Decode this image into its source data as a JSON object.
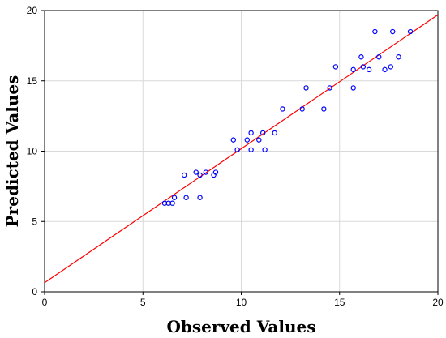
{
  "chart_data": {
    "type": "scatter",
    "title": "",
    "xlabel": "Observed Values",
    "ylabel": "Predicted Values",
    "xlim": [
      0,
      20
    ],
    "ylim": [
      0,
      20
    ],
    "xticks": [
      0,
      5,
      10,
      15,
      20
    ],
    "yticks": [
      0,
      5,
      10,
      15,
      20
    ],
    "grid": true,
    "legend": "none",
    "points": [
      {
        "x": 6.1,
        "y": 6.3
      },
      {
        "x": 6.3,
        "y": 6.3
      },
      {
        "x": 6.5,
        "y": 6.3
      },
      {
        "x": 6.6,
        "y": 6.7
      },
      {
        "x": 7.2,
        "y": 6.7
      },
      {
        "x": 7.1,
        "y": 8.3
      },
      {
        "x": 7.7,
        "y": 8.5
      },
      {
        "x": 7.9,
        "y": 8.3
      },
      {
        "x": 7.9,
        "y": 6.7
      },
      {
        "x": 8.2,
        "y": 8.5
      },
      {
        "x": 8.6,
        "y": 8.3
      },
      {
        "x": 8.7,
        "y": 8.5
      },
      {
        "x": 9.6,
        "y": 10.8
      },
      {
        "x": 9.8,
        "y": 10.1
      },
      {
        "x": 10.3,
        "y": 10.8
      },
      {
        "x": 10.5,
        "y": 11.3
      },
      {
        "x": 10.5,
        "y": 10.1
      },
      {
        "x": 10.9,
        "y": 10.8
      },
      {
        "x": 11.1,
        "y": 11.3
      },
      {
        "x": 11.2,
        "y": 10.1
      },
      {
        "x": 11.7,
        "y": 11.3
      },
      {
        "x": 12.1,
        "y": 13.0
      },
      {
        "x": 13.1,
        "y": 13.0
      },
      {
        "x": 13.3,
        "y": 14.5
      },
      {
        "x": 14.2,
        "y": 13.0
      },
      {
        "x": 14.5,
        "y": 14.5
      },
      {
        "x": 14.8,
        "y": 16.0
      },
      {
        "x": 15.7,
        "y": 15.8
      },
      {
        "x": 15.7,
        "y": 14.5
      },
      {
        "x": 16.1,
        "y": 16.7
      },
      {
        "x": 16.2,
        "y": 16.0
      },
      {
        "x": 16.5,
        "y": 15.8
      },
      {
        "x": 16.8,
        "y": 18.5
      },
      {
        "x": 17.0,
        "y": 16.7
      },
      {
        "x": 17.3,
        "y": 15.8
      },
      {
        "x": 17.6,
        "y": 16.0
      },
      {
        "x": 17.7,
        "y": 18.5
      },
      {
        "x": 18.0,
        "y": 16.7
      },
      {
        "x": 18.6,
        "y": 18.5
      }
    ],
    "fit_line": {
      "x": [
        0,
        20
      ],
      "y": [
        0.65,
        19.7
      ]
    },
    "colors": {
      "points": "#0000ff",
      "fit_line": "#ff0000",
      "grid": "#d9d9d9",
      "axis": "#000000"
    }
  }
}
